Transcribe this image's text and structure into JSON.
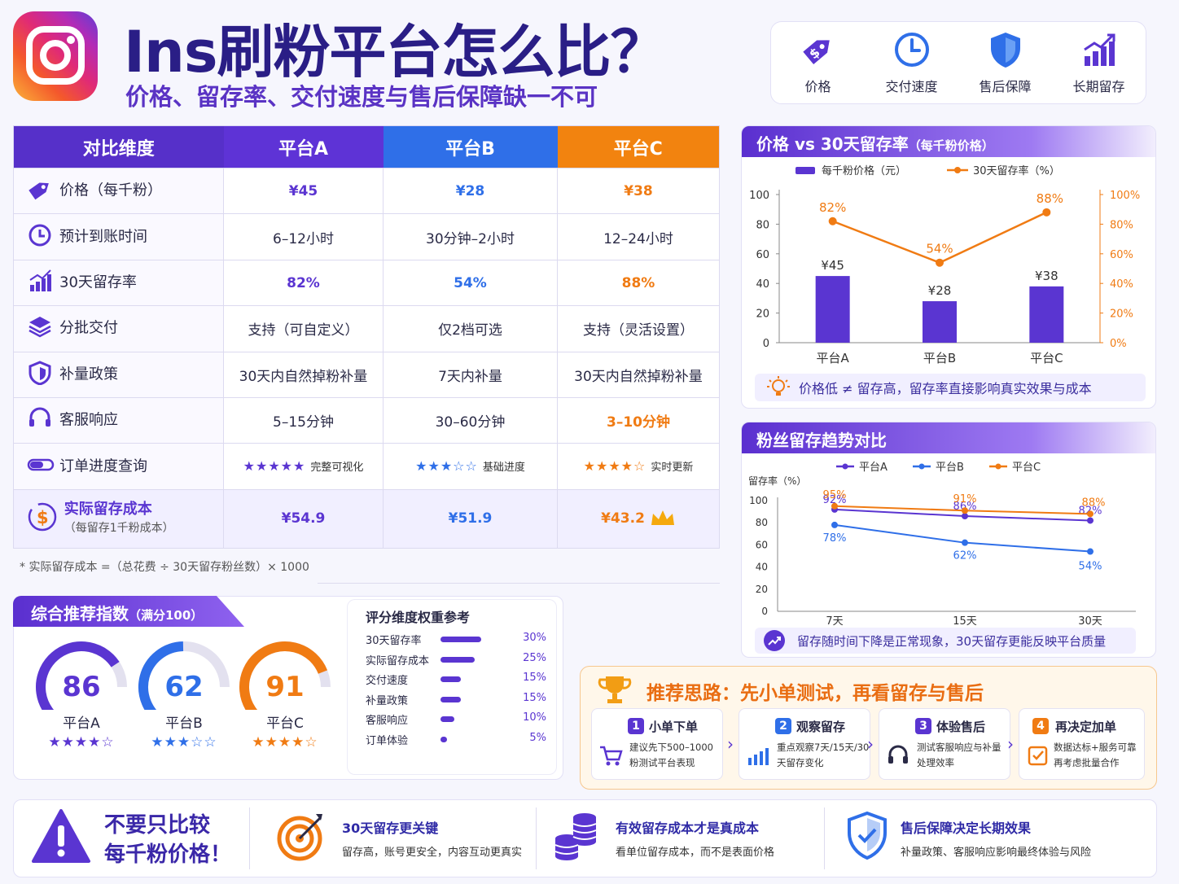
{
  "header": {
    "title": "Ins刷粉平台怎么比？",
    "subtitle": "价格、留存率、交付速度与售后保障缺一不可"
  },
  "features": [
    "价格",
    "交付速度",
    "售后保障",
    "长期留存"
  ],
  "table": {
    "headers": [
      "对比维度",
      "平台A",
      "平台B",
      "平台C"
    ],
    "rows": [
      {
        "label": "价格（每千粉）",
        "a": "¥45",
        "b": "¥28",
        "c": "¥38"
      },
      {
        "label": "预计到账时间",
        "a": "6–12小时",
        "b": "30分钟–2小时",
        "c": "12–24小时"
      },
      {
        "label": "30天留存率",
        "a": "82%",
        "b": "54%",
        "c": "88%"
      },
      {
        "label": "分批交付",
        "a": "支持（可自定义）",
        "b": "仅2档可选",
        "c": "支持（灵活设置）"
      },
      {
        "label": "补量政策",
        "a": "30天内自然掉粉补量",
        "b": "7天内补量",
        "c": "30天内自然掉粉补量"
      },
      {
        "label": "客服响应",
        "a": "5–15分钟",
        "b": "30–60分钟",
        "c": "3–10分钟"
      }
    ],
    "progress": {
      "label": "订单进度查询",
      "a": {
        "stars": "★★★★★",
        "text": "完整可视化",
        "rating": 5
      },
      "b": {
        "stars": "★★★☆☆",
        "text": "基础进度",
        "rating": 3
      },
      "c": {
        "stars": "★★★★☆",
        "text": "实时更新",
        "rating": 4
      }
    },
    "cost": {
      "label": "实际留存成本",
      "sub": "（每留存1千粉成本）",
      "a": "¥54.9",
      "b": "¥51.9",
      "c": "¥43.2"
    }
  },
  "note": "* 实际留存成本 =（总花费 ÷ 30天留存粉丝数）× 1000",
  "score": {
    "title": "综合推荐指数",
    "title_sub": "（满分100）",
    "items": [
      {
        "name": "平台A",
        "value": "86",
        "stars": "★★★★☆",
        "color": "#5a35d1"
      },
      {
        "name": "平台B",
        "value": "62",
        "stars": "★★★☆☆",
        "color": "#2f6fe8"
      },
      {
        "name": "平台C",
        "value": "91",
        "stars": "★★★★☆",
        "color": "#f07b13"
      }
    ]
  },
  "weights": {
    "title": "评分维度权重参考",
    "items": [
      {
        "name": "30天留存率",
        "pct": "30%",
        "value": 30
      },
      {
        "name": "实际留存成本",
        "pct": "25%",
        "value": 25
      },
      {
        "name": "交付速度",
        "pct": "15%",
        "value": 15
      },
      {
        "name": "补量政策",
        "pct": "15%",
        "value": 15
      },
      {
        "name": "客服响应",
        "pct": "10%",
        "value": 10
      },
      {
        "name": "订单体验",
        "pct": "5%",
        "value": 5
      }
    ]
  },
  "chart_data": [
    {
      "type": "bar",
      "title": "价格 vs 30天留存率",
      "title_sub": "（每千粉价格）",
      "categories": [
        "平台A",
        "平台B",
        "平台C"
      ],
      "series": [
        {
          "name": "每千粉价格（元）",
          "type": "bar",
          "values": [
            45,
            28,
            38
          ],
          "labels": [
            "¥45",
            "¥28",
            "¥38"
          ]
        },
        {
          "name": "30天留存率（%）",
          "type": "line",
          "values": [
            82,
            54,
            88
          ],
          "labels": [
            "82%",
            "54%",
            "88%"
          ]
        }
      ],
      "ylim": [
        0,
        100
      ],
      "yticks": [
        "0",
        "20",
        "40",
        "60",
        "80",
        "100"
      ],
      "y2ticks": [
        "0%",
        "20%",
        "40%",
        "60%",
        "80%",
        "100%"
      ],
      "tip": "价格低 ≠ 留存高，留存率直接影响真实效果与成本"
    },
    {
      "type": "line",
      "title": "粉丝留存趋势对比",
      "ylabel": "留存率（%）",
      "x": [
        "7天",
        "15天",
        "30天"
      ],
      "series": [
        {
          "name": "平台A",
          "values": [
            92,
            86,
            82
          ],
          "labels": [
            "92%",
            "86%",
            "82%"
          ],
          "color": "#5a35d1"
        },
        {
          "name": "平台B",
          "values": [
            78,
            62,
            54
          ],
          "labels": [
            "78%",
            "62%",
            "54%"
          ],
          "color": "#2f6fe8"
        },
        {
          "name": "平台C",
          "values": [
            95,
            91,
            88
          ],
          "labels": [
            "95%",
            "91%",
            "88%"
          ],
          "color": "#f07b13"
        }
      ],
      "ylim": [
        0,
        100
      ],
      "yticks": [
        "0",
        "20",
        "40",
        "60",
        "80",
        "100"
      ],
      "tip": "留存随时间下降是正常现象，30天留存更能反映平台质量"
    }
  ],
  "recommend": {
    "title": "推荐思路：先小单测试，再看留存与售后",
    "steps": [
      {
        "num": "1",
        "title": "小单下单",
        "desc": "建议先下500–1000粉测试平台表现",
        "color": "#5a35d1"
      },
      {
        "num": "2",
        "title": "观察留存",
        "desc": "重点观察7天/15天/30天留存变化",
        "color": "#2f6fe8"
      },
      {
        "num": "3",
        "title": "体验售后",
        "desc": "测试客服响应与补量处理效率",
        "color": "#5a35d1"
      },
      {
        "num": "4",
        "title": "再决定加单",
        "desc": "数据达标+服务可靠再考虑批量合作",
        "color": "#f07b13"
      }
    ]
  },
  "bottom": {
    "warn_line1": "不要只比较",
    "warn_line2": "每千粉价格！",
    "items": [
      {
        "title": "30天留存更关键",
        "desc": "留存高，账号更安全，内容互动更真实"
      },
      {
        "title": "有效留存成本才是真成本",
        "desc": "看单位留存成本，而不是表面价格"
      },
      {
        "title": "售后保障决定长期效果",
        "desc": "补量政策、客服响应影响最终体验与风险"
      }
    ]
  }
}
